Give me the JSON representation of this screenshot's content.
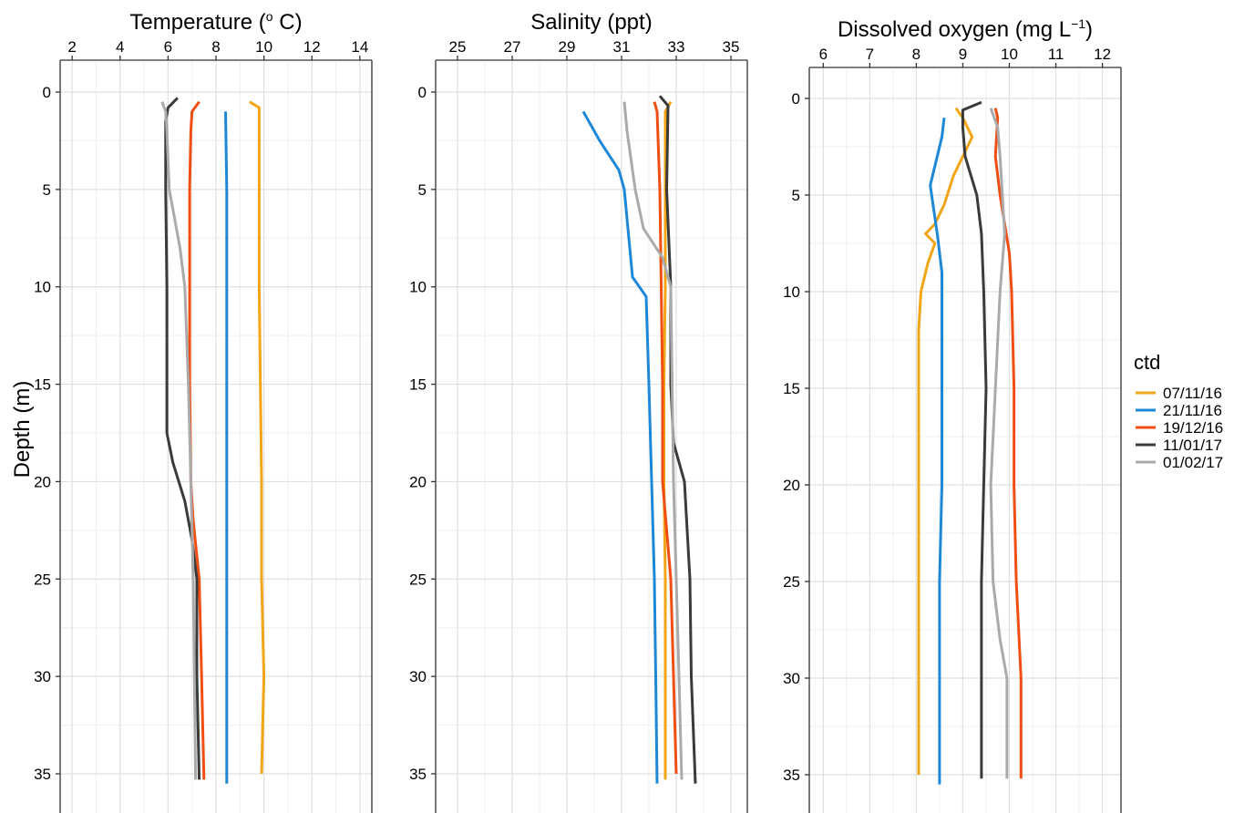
{
  "chart_data": {
    "type": "line",
    "ylabel": "Depth (m)",
    "yreversed": true,
    "ylim": [
      0,
      35.5
    ],
    "yticks": [
      0,
      5,
      10,
      15,
      20,
      25,
      30,
      35
    ],
    "grid": true,
    "legend": {
      "title": "ctd",
      "placement": "right",
      "entries": [
        "07/11/16",
        "21/11/16",
        "19/12/16",
        "11/01/17",
        "01/02/17"
      ]
    },
    "colors": {
      "07/11/16": "#F2A516",
      "21/11/16": "#1E88D8",
      "19/12/16": "#F04E12",
      "11/01/17": "#3A3A3A",
      "01/02/17": "#AAAAAA"
    },
    "panels": [
      {
        "title_main": "Temperature (",
        "title_sup": "o",
        "title_tail": " C)",
        "xlim": [
          1.5,
          14.5
        ],
        "xticks": [
          2,
          4,
          6,
          8,
          10,
          12,
          14
        ],
        "series": [
          {
            "name": "07/11/16",
            "depth": [
              0.5,
              0.8,
              2,
              5,
              10,
              15,
              20,
              25,
              30,
              35
            ],
            "values": [
              9.4,
              9.8,
              9.8,
              9.8,
              9.8,
              9.85,
              9.9,
              9.9,
              10.0,
              9.9
            ]
          },
          {
            "name": "21/11/16",
            "depth": [
              1,
              5,
              10,
              15,
              20,
              25,
              30,
              35.5
            ],
            "values": [
              8.4,
              8.45,
              8.45,
              8.45,
              8.45,
              8.45,
              8.45,
              8.45
            ]
          },
          {
            "name": "19/12/16",
            "depth": [
              0.5,
              1,
              2,
              5,
              10,
              15,
              20,
              22,
              25,
              30,
              35.3
            ],
            "values": [
              7.3,
              7.0,
              6.95,
              6.9,
              6.9,
              6.9,
              6.95,
              7.05,
              7.3,
              7.4,
              7.5
            ]
          },
          {
            "name": "11/01/17",
            "depth": [
              0.3,
              0.8,
              1.5,
              5,
              10,
              15,
              17.5,
              19,
              21,
              23,
              25,
              30,
              35.3
            ],
            "values": [
              6.4,
              6.0,
              5.9,
              5.9,
              5.95,
              5.95,
              5.95,
              6.2,
              6.7,
              7.0,
              7.2,
              7.2,
              7.3
            ]
          },
          {
            "name": "01/02/17",
            "depth": [
              0.5,
              1,
              2,
              5,
              8,
              10,
              15,
              20,
              25,
              30,
              35.3
            ],
            "values": [
              5.75,
              5.9,
              5.95,
              6.05,
              6.5,
              6.7,
              6.85,
              6.95,
              7.05,
              7.1,
              7.15
            ]
          }
        ]
      },
      {
        "title_main": "Salinity (ppt)",
        "xlim": [
          24.2,
          35.6
        ],
        "xticks": [
          25,
          27,
          29,
          31,
          33,
          35
        ],
        "series": [
          {
            "name": "07/11/16",
            "depth": [
              0.5,
              1,
              5,
              10,
              15,
              20,
              25,
              30,
              35.3
            ],
            "values": [
              32.8,
              32.6,
              32.6,
              32.6,
              32.55,
              32.55,
              32.6,
              32.6,
              32.6
            ]
          },
          {
            "name": "21/11/16",
            "depth": [
              1,
              2.5,
              4,
              5,
              8,
              9.5,
              10.5,
              15,
              20,
              25,
              30,
              35.5
            ],
            "values": [
              29.6,
              30.2,
              30.9,
              31.1,
              31.3,
              31.4,
              31.9,
              32.0,
              32.1,
              32.2,
              32.25,
              32.3
            ]
          },
          {
            "name": "19/12/16",
            "depth": [
              0.5,
              1,
              5,
              10,
              15,
              20,
              25,
              30,
              35
            ],
            "values": [
              32.2,
              32.3,
              32.4,
              32.45,
              32.5,
              32.5,
              32.8,
              32.9,
              33.0
            ]
          },
          {
            "name": "11/01/17",
            "depth": [
              0.2,
              0.7,
              5,
              10,
              15,
              18,
              20,
              25,
              30,
              35.5
            ],
            "values": [
              32.4,
              32.7,
              32.65,
              32.8,
              32.8,
              32.9,
              33.3,
              33.5,
              33.55,
              33.7
            ]
          },
          {
            "name": "01/02/17",
            "depth": [
              0.5,
              2,
              5,
              7,
              8.5,
              10,
              15,
              20,
              25,
              30,
              35.3
            ],
            "values": [
              31.1,
              31.2,
              31.5,
              31.8,
              32.5,
              32.8,
              32.85,
              32.9,
              33.0,
              33.1,
              33.2
            ]
          }
        ]
      },
      {
        "title_main": "Dissolved oxygen (mg L",
        "title_sup": "−1",
        "title_tail": ")",
        "xlim": [
          5.7,
          12.4
        ],
        "xticks": [
          6,
          7,
          8,
          9,
          10,
          11,
          12
        ],
        "series": [
          {
            "name": "07/11/16",
            "depth": [
              0.5,
              1,
              2,
              4,
              5.5,
              6.5,
              7,
              7.5,
              8.5,
              10,
              12,
              15,
              20,
              25,
              30,
              35
            ],
            "values": [
              8.85,
              9.0,
              9.2,
              8.8,
              8.6,
              8.4,
              8.2,
              8.4,
              8.25,
              8.1,
              8.05,
              8.05,
              8.05,
              8.05,
              8.05,
              8.05
            ]
          },
          {
            "name": "21/11/16",
            "depth": [
              1,
              2,
              4.5,
              7,
              9,
              10,
              15,
              20,
              25,
              30,
              35.5
            ],
            "values": [
              8.6,
              8.55,
              8.3,
              8.45,
              8.55,
              8.55,
              8.55,
              8.55,
              8.5,
              8.5,
              8.5
            ]
          },
          {
            "name": "19/12/16",
            "depth": [
              0.5,
              1,
              3,
              5,
              6.5,
              8,
              10,
              15,
              20,
              25,
              30,
              35.2
            ],
            "values": [
              9.7,
              9.75,
              9.7,
              9.8,
              9.9,
              10.0,
              10.05,
              10.1,
              10.1,
              10.15,
              10.25,
              10.25
            ]
          },
          {
            "name": "11/01/17",
            "depth": [
              0.2,
              0.6,
              1.5,
              3,
              5,
              7,
              10,
              15,
              20,
              25,
              30,
              35.2
            ],
            "values": [
              9.4,
              9.0,
              9.0,
              9.05,
              9.3,
              9.4,
              9.45,
              9.5,
              9.45,
              9.4,
              9.4,
              9.4
            ]
          },
          {
            "name": "01/02/17",
            "depth": [
              0.5,
              1.5,
              3,
              5,
              7,
              10,
              15,
              20,
              25,
              28,
              30,
              35.2
            ],
            "values": [
              9.6,
              9.75,
              9.8,
              9.85,
              9.9,
              9.8,
              9.7,
              9.6,
              9.65,
              9.8,
              9.95,
              9.95
            ]
          }
        ]
      }
    ]
  }
}
